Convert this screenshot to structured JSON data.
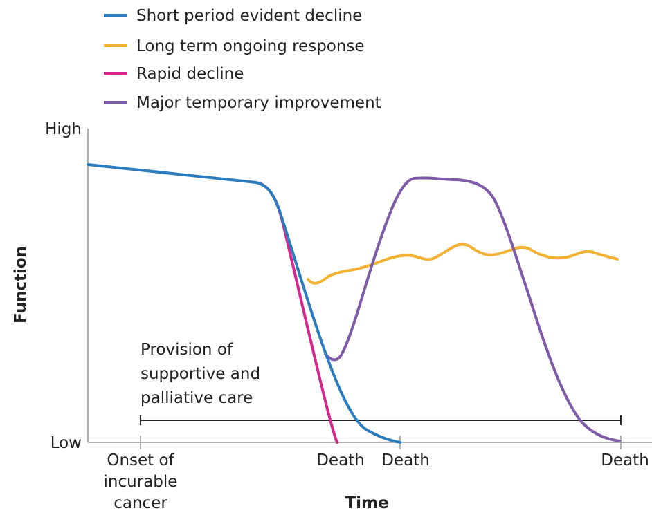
{
  "legend": [
    {
      "label": "Short period evident decline"
    },
    {
      "label": "Long term ongoing response"
    },
    {
      "label": "Rapid decline"
    },
    {
      "label": "Major temporary improvement"
    }
  ],
  "y_axis": {
    "title": "Function",
    "high": "High",
    "low": "Low"
  },
  "x_axis": {
    "title": "Time",
    "labels": [
      {
        "lines": [
          "Onset of",
          "incurable",
          "cancer"
        ]
      },
      {
        "lines": [
          "Death"
        ]
      },
      {
        "lines": [
          "Death"
        ]
      },
      {
        "lines": [
          "Death"
        ]
      }
    ]
  },
  "annotation": {
    "lines": [
      "Provision of",
      "supportive and",
      "palliative care"
    ]
  }
}
